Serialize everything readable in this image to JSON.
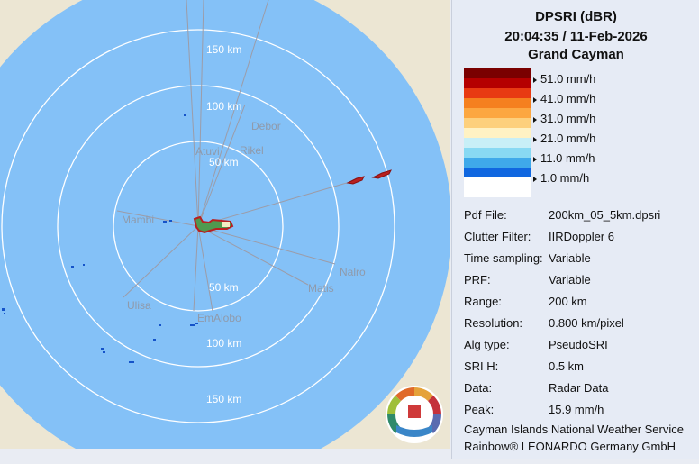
{
  "panel": {
    "product": "DPSRI (dBR)",
    "datetime": "20:04:35 / 11-Feb-2026",
    "site": "Grand Cayman"
  },
  "legend": {
    "labels": [
      "51.0 mm/h",
      "41.0 mm/h",
      "31.0 mm/h",
      "21.0 mm/h",
      "11.0 mm/h",
      "1.0 mm/h"
    ],
    "colors": [
      "#7a0000",
      "#b50000",
      "#e83a12",
      "#f5801f",
      "#fca741",
      "#fdd07d",
      "#fff2c4",
      "#c8eff7",
      "#88d9f3",
      "#3fa9ea",
      "#1067e0",
      "#ffffff"
    ]
  },
  "info": [
    {
      "key": "Pdf File:",
      "value": "200km_05_5km.dpsri"
    },
    {
      "key": "Clutter Filter:",
      "value": "IIRDoppler 6"
    },
    {
      "key": "Time sampling:",
      "value": "Variable"
    },
    {
      "key": "PRF:",
      "value": "Variable"
    },
    {
      "key": "Range:",
      "value": "200 km"
    },
    {
      "key": "Resolution:",
      "value": "0.800 km/pixel"
    },
    {
      "key": "Alg type:",
      "value": "PseudoSRI"
    },
    {
      "key": "SRI H:",
      "value": "0.5 km"
    },
    {
      "key": "Data:",
      "value": "Radar Data"
    },
    {
      "key": "Peak:",
      "value": "15.9 mm/h"
    }
  ],
  "footer": {
    "line1": "Cayman Islands National Weather Service",
    "line2": "Rainbow® LEONARDO Germany GmbH"
  },
  "map": {
    "range_labels": {
      "r50n": "50 km",
      "r100n": "100 km",
      "r150n": "150 km",
      "r50s": "50 km",
      "r100s": "100 km",
      "r150s": "150 km"
    },
    "sectors": [
      "Atuvi",
      "Rikel",
      "Debor",
      "Mambi",
      "Nalro",
      "Matis",
      "Ulisa",
      "EmAlobo"
    ],
    "colors": {
      "land": "#ece6d3",
      "sea": "#84c1f7",
      "ring": "#ffffff",
      "spoke": "#9c9ca8",
      "island": "#b82020"
    }
  }
}
